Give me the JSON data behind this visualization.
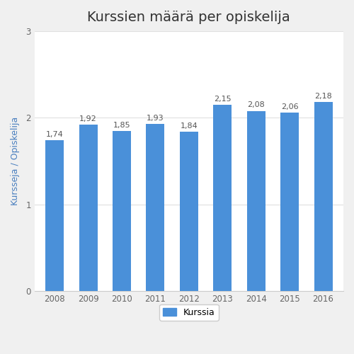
{
  "title": "Kurssien määrä per opiskelija",
  "categories": [
    "2008",
    "2009",
    "2010",
    "2011",
    "2012",
    "2013",
    "2014",
    "2015",
    "2016"
  ],
  "values": [
    1.74,
    1.92,
    1.85,
    1.93,
    1.84,
    2.15,
    2.08,
    2.06,
    2.18
  ],
  "bar_color": "#4a90d9",
  "ylabel": "Kursseja / Opiskelija",
  "ylim": [
    0,
    3
  ],
  "yticks": [
    0,
    1,
    2,
    3
  ],
  "legend_label": "Kurssia",
  "background_color": "#f0f0f0",
  "plot_bg_color": "#ffffff",
  "title_fontsize": 14,
  "label_fontsize": 9,
  "tick_fontsize": 8.5,
  "bar_label_fontsize": 8,
  "grid_color": "#e0e0e0",
  "ylabel_color": "#4a7fbf",
  "title_color": "#333333"
}
